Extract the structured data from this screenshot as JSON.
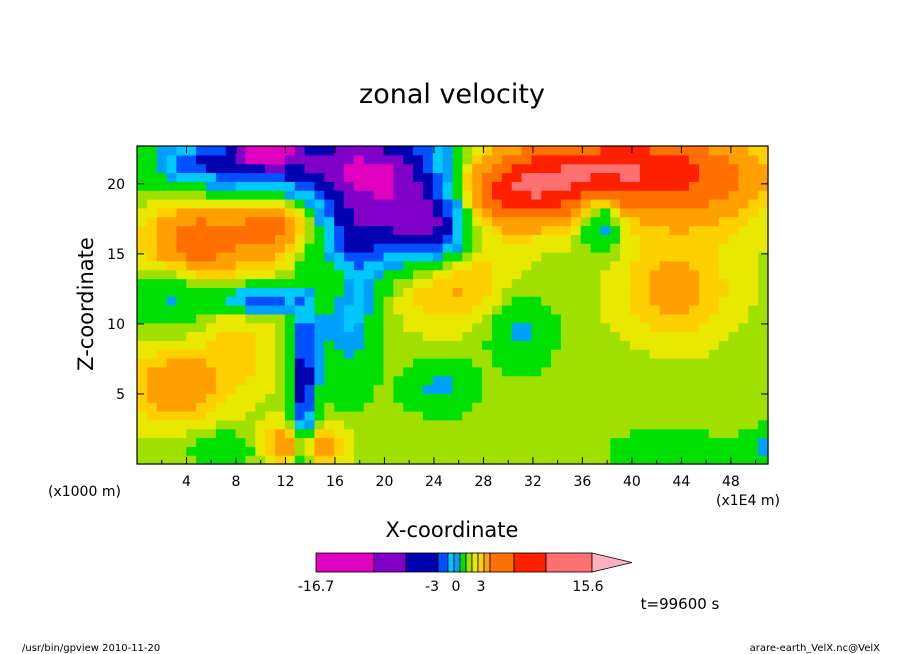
{
  "chart_data": {
    "type": "heatmap",
    "title": "zonal velocity",
    "xlabel": "X-coordinate",
    "ylabel": "Z-coordinate",
    "x_unit_left": "(x1000 m)",
    "x_unit_right": "(x1E4 m)",
    "xticks": [
      4,
      8,
      12,
      16,
      20,
      24,
      28,
      32,
      36,
      40,
      44,
      48
    ],
    "yticks": [
      5,
      10,
      15,
      20
    ],
    "xlim": [
      0,
      51
    ],
    "ylim": [
      0,
      22.7
    ],
    "colorbar": {
      "labels": [
        "-16.7",
        "-3",
        "0",
        "3",
        "15.6"
      ],
      "colors": [
        "#e000c0",
        "#8000c8",
        "#0000b0",
        "#0050ff",
        "#00c8ff",
        "#00a0ff",
        "#00e000",
        "#a0e000",
        "#e8e800",
        "#ffd000",
        "#ffa000",
        "#ff7000",
        "#ff2000",
        "#ff7070",
        "#ffb0c0"
      ]
    },
    "time_label": "t=99600 s",
    "anomalies": [
      {
        "x": 14.5,
        "z": 21.5,
        "rx": 10,
        "rz": 2.4,
        "v": -10
      },
      {
        "x": 10.5,
        "z": 22.5,
        "rx": 2,
        "rz": 1,
        "v": -16
      },
      {
        "x": 20.5,
        "z": 18.5,
        "rx": 4,
        "rz": 4,
        "v": -10
      },
      {
        "x": 24,
        "z": 17,
        "rx": 2.8,
        "rz": 2.5,
        "v": -8
      },
      {
        "x": 17,
        "z": 14,
        "rx": 2.5,
        "rz": 7,
        "v": -6
      },
      {
        "x": 10,
        "z": 11.8,
        "rx": 3,
        "rz": 0.9,
        "v": -8
      },
      {
        "x": 13.5,
        "z": 6,
        "rx": 1,
        "rz": 6,
        "v": -9
      },
      {
        "x": 5,
        "z": 16,
        "rx": 4,
        "rz": 2.6,
        "v": 6
      },
      {
        "x": 11,
        "z": 17,
        "rx": 3,
        "rz": 2.2,
        "v": 5
      },
      {
        "x": 16,
        "z": 13,
        "rx": 2,
        "rz": 2,
        "v": 4
      },
      {
        "x": 25,
        "z": 13,
        "rx": 5,
        "rz": 3,
        "v": 3
      },
      {
        "x": 31,
        "z": 19.5,
        "rx": 5,
        "rz": 2.5,
        "v": 8
      },
      {
        "x": 39.5,
        "z": 21,
        "rx": 9,
        "rz": 2.5,
        "v": 10
      },
      {
        "x": 45,
        "z": 18.5,
        "rx": 6,
        "rz": 3,
        "v": 2
      },
      {
        "x": 43.5,
        "z": 12.5,
        "rx": 4.5,
        "rz": 3.5,
        "v": 3
      },
      {
        "x": 3,
        "z": 5.5,
        "rx": 3.5,
        "rz": 2.5,
        "v": 4
      },
      {
        "x": 8,
        "z": 8,
        "rx": 3,
        "rz": 3,
        "v": 2
      },
      {
        "x": 13.5,
        "z": 1.5,
        "rx": 3,
        "rz": 1.5,
        "v": 5
      },
      {
        "x": 3,
        "z": 12,
        "rx": 3,
        "rz": 2,
        "v": -3
      },
      {
        "x": 31,
        "z": 9.5,
        "rx": 2.5,
        "rz": 2.5,
        "v": -3
      },
      {
        "x": 24.5,
        "z": 5.5,
        "rx": 2.8,
        "rz": 1.8,
        "v": -3
      },
      {
        "x": 37.5,
        "z": 17.5,
        "rx": 1.5,
        "rz": 2,
        "v": -5
      },
      {
        "x": 43,
        "z": 1,
        "rx": 4,
        "rz": 1.5,
        "v": -2.5
      },
      {
        "x": 50.5,
        "z": 1,
        "rx": 1.5,
        "rz": 1.5,
        "v": -3
      },
      {
        "x": 5,
        "z": 21.5,
        "rx": 3,
        "rz": 1.2,
        "v": -4
      },
      {
        "x": 7,
        "z": 1,
        "rx": 2.5,
        "rz": 1.2,
        "v": -2.5
      }
    ]
  },
  "footer": {
    "left": "/usr/bin/gpview   2010-11-20",
    "right": "arare-earth_VelX.nc@VelX"
  }
}
